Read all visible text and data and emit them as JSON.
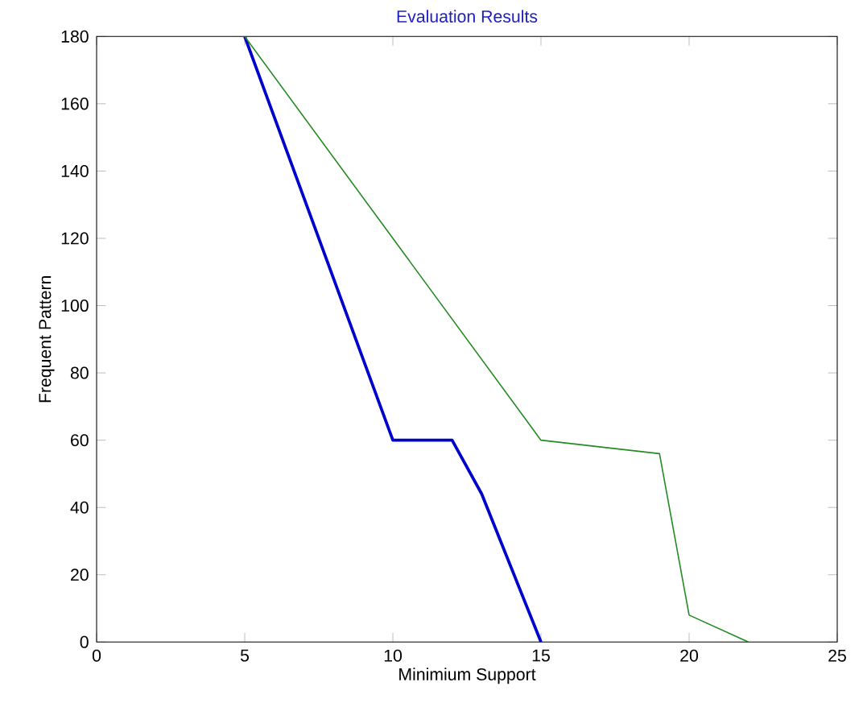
{
  "chart_data": {
    "type": "line",
    "title": "Evaluation Results",
    "xlabel": "Minimium Support",
    "ylabel": "Frequent Pattern",
    "xlim": [
      0,
      25
    ],
    "xticks": [
      0,
      5,
      10,
      15,
      20,
      25
    ],
    "ylim": [
      0,
      180
    ],
    "yticks": [
      0,
      20,
      40,
      60,
      80,
      100,
      120,
      140,
      160,
      180
    ],
    "series": [
      {
        "color": "#0000cc",
        "x": [
          5,
          10,
          12,
          13,
          15
        ],
        "values": [
          180,
          60,
          60,
          44,
          0
        ]
      },
      {
        "color": "#228b22",
        "x": [
          5,
          15,
          19,
          20,
          22
        ],
        "values": [
          180,
          60,
          56,
          8,
          0
        ]
      }
    ]
  }
}
